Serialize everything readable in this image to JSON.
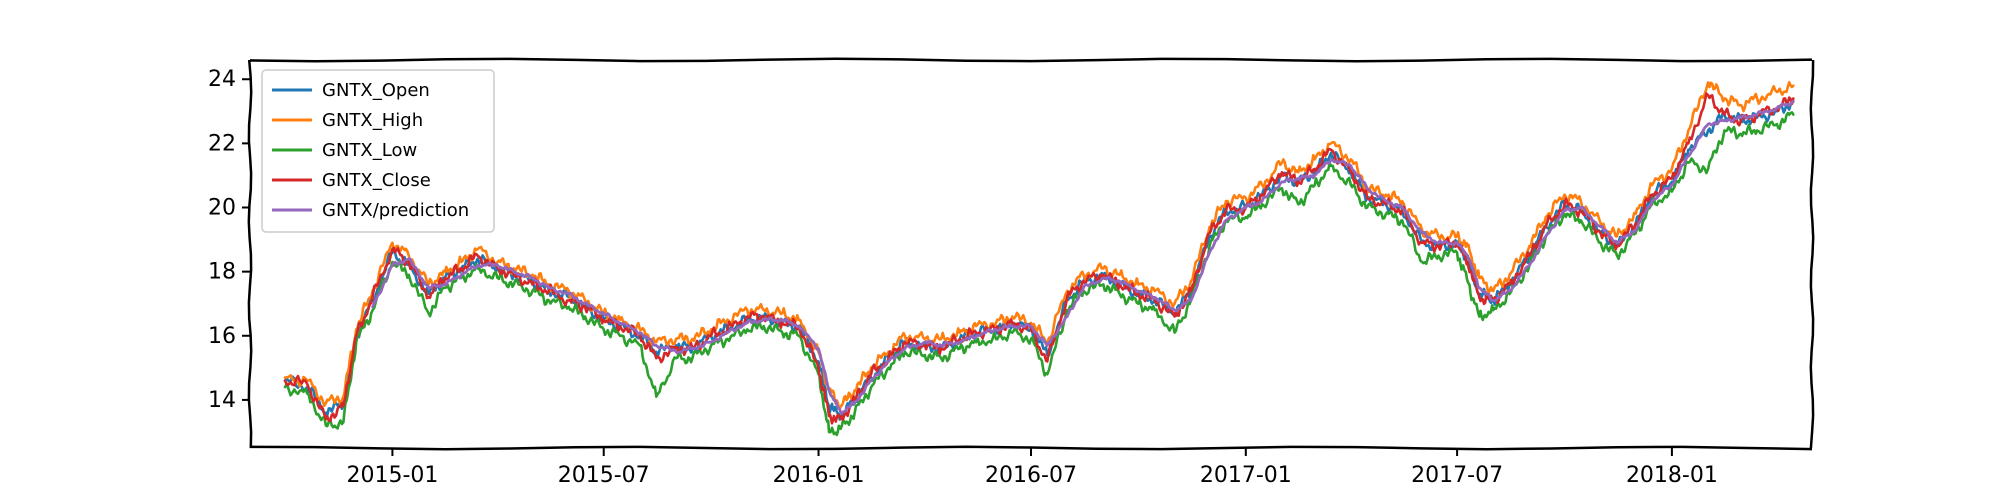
{
  "chart_data": {
    "type": "line",
    "title": "",
    "xlabel": "",
    "ylabel": "",
    "x_ticks": [
      "2015-01",
      "2015-07",
      "2016-01",
      "2016-07",
      "2017-01",
      "2017-07",
      "2018-01"
    ],
    "y_ticks": [
      "14",
      "16",
      "18",
      "20",
      "22",
      "24"
    ],
    "xlim": [
      "2014-09-01",
      "2018-05-01"
    ],
    "ylim": [
      12.5,
      24.6
    ],
    "grid": false,
    "legend_position": "top-left",
    "style": "xkcd",
    "anchor_dates": [
      "2014-10-01",
      "2014-10-20",
      "2014-11-05",
      "2014-11-20",
      "2014-12-01",
      "2014-12-15",
      "2015-01-01",
      "2015-01-15",
      "2015-02-01",
      "2015-02-15",
      "2015-03-01",
      "2015-03-15",
      "2015-04-01",
      "2015-04-15",
      "2015-05-01",
      "2015-05-15",
      "2015-06-01",
      "2015-06-15",
      "2015-07-01",
      "2015-07-15",
      "2015-08-01",
      "2015-08-15",
      "2015-09-01",
      "2015-09-15",
      "2015-10-01",
      "2015-10-15",
      "2015-11-01",
      "2015-11-15",
      "2015-12-01",
      "2015-12-15",
      "2016-01-01",
      "2016-01-10",
      "2016-01-20",
      "2016-02-01",
      "2016-02-15",
      "2016-03-01",
      "2016-03-15",
      "2016-04-01",
      "2016-04-15",
      "2016-05-01",
      "2016-05-15",
      "2016-06-01",
      "2016-06-15",
      "2016-07-01",
      "2016-07-15",
      "2016-08-01",
      "2016-08-15",
      "2016-09-01",
      "2016-09-15",
      "2016-10-01",
      "2016-10-15",
      "2016-11-01",
      "2016-11-15",
      "2016-12-01",
      "2016-12-15",
      "2017-01-01",
      "2017-01-15",
      "2017-02-01",
      "2017-02-15",
      "2017-03-01",
      "2017-03-15",
      "2017-04-01",
      "2017-04-15",
      "2017-05-01",
      "2017-05-15",
      "2017-06-01",
      "2017-06-15",
      "2017-07-01",
      "2017-07-10",
      "2017-07-20",
      "2017-08-01",
      "2017-08-15",
      "2017-09-01",
      "2017-09-15",
      "2017-10-01",
      "2017-10-15",
      "2017-11-01",
      "2017-11-15",
      "2017-12-01",
      "2017-12-15",
      "2018-01-01",
      "2018-01-15",
      "2018-02-01",
      "2018-02-15",
      "2018-03-01",
      "2018-03-15",
      "2018-04-01",
      "2018-04-15"
    ],
    "series": [
      {
        "name": "GNTX_Open",
        "color": "#1f77b4",
        "values": [
          14.6,
          14.4,
          13.6,
          13.9,
          16.0,
          17.1,
          18.6,
          18.2,
          17.3,
          17.8,
          18.1,
          18.4,
          18.1,
          17.9,
          17.7,
          17.4,
          17.2,
          16.9,
          16.5,
          16.3,
          16.0,
          15.5,
          15.7,
          15.6,
          16.0,
          16.2,
          16.5,
          16.6,
          16.4,
          16.3,
          15.2,
          13.8,
          13.5,
          14.0,
          14.7,
          15.3,
          15.8,
          15.7,
          15.6,
          15.9,
          16.1,
          16.2,
          16.4,
          16.2,
          15.4,
          17.1,
          17.7,
          17.9,
          17.6,
          17.3,
          17.1,
          16.7,
          17.4,
          19.1,
          19.9,
          20.0,
          20.4,
          21.0,
          20.8,
          21.1,
          21.7,
          21.1,
          20.3,
          20.1,
          19.9,
          18.9,
          18.8,
          18.9,
          18.4,
          17.3,
          17.1,
          17.6,
          18.5,
          19.4,
          20.1,
          19.9,
          19.2,
          18.8,
          19.5,
          20.4,
          20.8,
          21.8,
          22.4,
          22.9,
          22.7,
          22.8,
          23.0,
          23.3
        ]
      },
      {
        "name": "GNTX_High",
        "color": "#ff7f0e",
        "values": [
          14.7,
          14.6,
          13.9,
          14.1,
          16.2,
          17.4,
          18.9,
          18.5,
          17.6,
          18.0,
          18.3,
          18.7,
          18.3,
          18.1,
          17.9,
          17.6,
          17.4,
          17.1,
          16.7,
          16.5,
          16.2,
          15.8,
          15.9,
          15.9,
          16.2,
          16.5,
          16.8,
          16.8,
          16.7,
          16.5,
          15.5,
          14.3,
          13.8,
          14.3,
          15.0,
          15.5,
          16.0,
          15.9,
          15.9,
          16.1,
          16.3,
          16.4,
          16.6,
          16.4,
          15.8,
          17.4,
          17.9,
          18.1,
          17.9,
          17.6,
          17.4,
          17.0,
          17.7,
          19.4,
          20.2,
          20.3,
          20.7,
          21.4,
          21.1,
          21.5,
          22.0,
          21.5,
          20.6,
          20.4,
          20.2,
          19.3,
          19.1,
          19.1,
          18.8,
          17.8,
          17.4,
          17.9,
          18.8,
          19.7,
          20.4,
          20.2,
          19.5,
          19.1,
          19.8,
          20.7,
          21.2,
          22.4,
          23.9,
          23.4,
          23.2,
          23.4,
          23.6,
          23.8
        ]
      },
      {
        "name": "GNTX_Low",
        "color": "#2ca02c",
        "values": [
          14.4,
          14.2,
          13.2,
          13.3,
          15.8,
          16.8,
          18.3,
          17.9,
          16.7,
          17.5,
          17.8,
          18.1,
          17.8,
          17.6,
          17.4,
          17.1,
          16.9,
          16.6,
          16.2,
          16.0,
          15.7,
          14.1,
          15.3,
          15.3,
          15.7,
          15.9,
          16.2,
          16.3,
          16.1,
          16.0,
          14.8,
          13.0,
          13.1,
          13.6,
          14.4,
          15.0,
          15.5,
          15.4,
          15.3,
          15.6,
          15.8,
          15.9,
          16.1,
          15.9,
          14.8,
          16.8,
          17.4,
          17.6,
          17.3,
          17.0,
          16.8,
          16.1,
          17.1,
          18.8,
          19.6,
          19.7,
          20.1,
          20.6,
          20.1,
          20.7,
          21.3,
          20.7,
          20.0,
          19.8,
          19.6,
          18.3,
          18.5,
          18.6,
          17.7,
          16.6,
          16.8,
          17.3,
          18.2,
          19.1,
          19.8,
          19.6,
          18.9,
          18.5,
          19.2,
          20.1,
          20.5,
          21.4,
          21.2,
          22.4,
          22.3,
          22.4,
          22.6,
          22.9
        ]
      },
      {
        "name": "GNTX_Close",
        "color": "#d62728",
        "values": [
          14.6,
          14.5,
          13.4,
          13.8,
          16.0,
          17.2,
          18.7,
          18.3,
          17.2,
          17.8,
          18.1,
          18.5,
          18.1,
          17.9,
          17.6,
          17.4,
          17.1,
          16.9,
          16.5,
          16.3,
          16.0,
          15.3,
          15.6,
          15.6,
          16.0,
          16.2,
          16.6,
          16.6,
          16.4,
          16.3,
          15.0,
          13.5,
          13.4,
          14.0,
          14.8,
          15.3,
          15.8,
          15.7,
          15.6,
          15.9,
          16.1,
          16.2,
          16.4,
          16.2,
          15.2,
          17.2,
          17.7,
          17.9,
          17.6,
          17.3,
          17.1,
          16.6,
          17.4,
          19.2,
          19.9,
          20.0,
          20.4,
          21.1,
          20.8,
          21.2,
          21.8,
          21.1,
          20.3,
          20.1,
          19.9,
          18.9,
          18.8,
          18.9,
          18.3,
          17.2,
          17.1,
          17.6,
          18.5,
          19.4,
          20.1,
          19.9,
          19.2,
          18.8,
          19.5,
          20.4,
          20.9,
          22.0,
          23.5,
          22.9,
          22.7,
          22.9,
          23.1,
          23.4
        ]
      },
      {
        "name": "GNTX/prediction",
        "color": "#9467bd",
        "values": [
          null,
          null,
          null,
          null,
          null,
          16.9,
          18.2,
          18.4,
          17.5,
          17.6,
          17.9,
          18.2,
          18.2,
          18.0,
          17.8,
          17.5,
          17.3,
          17.0,
          16.7,
          16.4,
          16.1,
          15.7,
          15.5,
          15.6,
          15.8,
          16.1,
          16.4,
          16.5,
          16.5,
          16.3,
          15.6,
          14.3,
          13.6,
          13.9,
          14.6,
          15.2,
          15.6,
          15.8,
          15.7,
          15.8,
          16.0,
          16.2,
          16.3,
          16.3,
          15.7,
          16.6,
          17.5,
          17.8,
          17.7,
          17.4,
          17.2,
          16.8,
          17.1,
          18.6,
          19.6,
          20.0,
          20.2,
          20.8,
          20.9,
          21.0,
          21.5,
          21.3,
          20.6,
          20.2,
          20.0,
          19.2,
          18.9,
          18.9,
          18.5,
          17.5,
          17.1,
          17.4,
          18.2,
          19.1,
          19.9,
          20.0,
          19.4,
          18.9,
          19.3,
          20.2,
          20.7,
          21.6,
          22.6,
          22.7,
          22.8,
          22.9,
          23.1,
          23.3
        ]
      }
    ]
  }
}
